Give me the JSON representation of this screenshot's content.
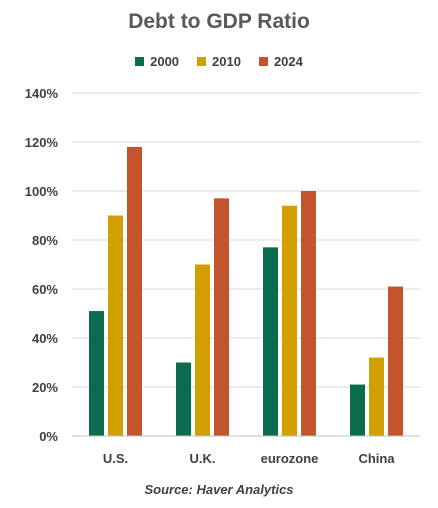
{
  "chart_data": {
    "type": "bar",
    "title": "Debt to GDP Ratio",
    "source": "Source: Haver Analytics",
    "categories": [
      "U.S.",
      "U.K.",
      "eurozone",
      "China"
    ],
    "series": [
      {
        "name": "2000",
        "color": "#0b6b4e",
        "values": [
          51,
          30,
          77,
          21
        ]
      },
      {
        "name": "2010",
        "color": "#d1a000",
        "values": [
          90,
          70,
          94,
          32
        ]
      },
      {
        "name": "2024",
        "color": "#c2552c",
        "values": [
          118,
          97,
          100,
          61
        ]
      }
    ],
    "ylim": [
      0,
      140
    ],
    "yticks": [
      0,
      20,
      40,
      60,
      80,
      100,
      120,
      140
    ],
    "ytick_labels": [
      "0%",
      "20%",
      "40%",
      "60%",
      "80%",
      "100%",
      "120%",
      "140%"
    ],
    "grid": true,
    "legend_position": "top-center"
  }
}
